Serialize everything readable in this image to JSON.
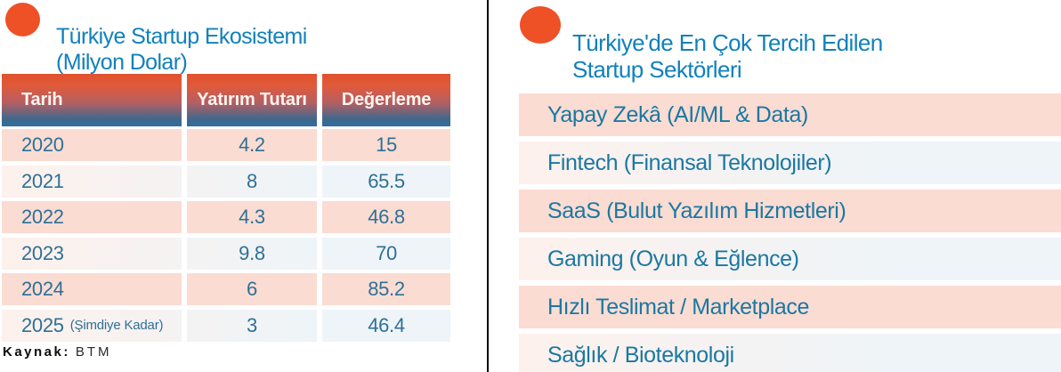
{
  "left_panel": {
    "title_line1": "Türkiye Startup Ekosistemi",
    "title_line2": "(Milyon Dolar)",
    "table": {
      "headers": [
        "Tarih",
        "Yatırım Tutarı",
        "Değerleme"
      ],
      "rows": [
        {
          "tarih": "2020",
          "tarih_note": "",
          "yatirim": "4.2",
          "degerleme": "15"
        },
        {
          "tarih": "2021",
          "tarih_note": "",
          "yatirim": "8",
          "degerleme": "65.5"
        },
        {
          "tarih": "2022",
          "tarih_note": "",
          "yatirim": "4.3",
          "degerleme": "46.8"
        },
        {
          "tarih": "2023",
          "tarih_note": "",
          "yatirim": "9.8",
          "degerleme": "70"
        },
        {
          "tarih": "2024",
          "tarih_note": "",
          "yatirim": "6",
          "degerleme": "85.2"
        },
        {
          "tarih": "2025",
          "tarih_note": "(Şimdiye Kadar)",
          "yatirim": "3",
          "degerleme": "46.4"
        }
      ]
    },
    "source_label": "Kaynak:",
    "source_value": "BTM"
  },
  "right_panel": {
    "title_line1": "Türkiye'de En Çok Tercih Edilen",
    "title_line2": "Startup Sektörleri",
    "sectors": [
      "Yapay Zekâ (AI/ML & Data)",
      "Fintech (Finansal Teknolojiler)",
      "SaaS (Bulut Yazılım Hizmetleri)",
      "Gaming (Oyun & Eğlence)",
      "Hızlı Teslimat / Marketplace",
      "Sağlık / Bioteknoloji"
    ]
  },
  "colors": {
    "accent_orange": "#ee5126",
    "title_blue": "#1181bb",
    "table_text_blue": "#2e7096",
    "list_text_blue": "#1a78a2",
    "row_pink": "#fadcd3",
    "row_light_left": "#fdf1ec",
    "row_light_right": "#eef4f8",
    "header_gradient_top": "#e2512c",
    "header_gradient_bottom": "#2f6f9f",
    "divider_black": "#0b0b0b"
  },
  "chart_data": {
    "type": "table",
    "title": "Türkiye Startup Ekosistemi (Milyon Dolar)",
    "columns": [
      "Tarih",
      "Yatırım Tutarı",
      "Değerleme"
    ],
    "rows": [
      [
        "2020",
        4.2,
        15
      ],
      [
        "2021",
        8,
        65.5
      ],
      [
        "2022",
        4.3,
        46.8
      ],
      [
        "2023",
        9.8,
        70
      ],
      [
        "2024",
        6,
        85.2
      ],
      [
        "2025 (Şimdiye Kadar)",
        3,
        46.4
      ]
    ],
    "source": "BTM",
    "related_list": {
      "title": "Türkiye'de En Çok Tercih Edilen Startup Sektörleri",
      "items": [
        "Yapay Zekâ (AI/ML & Data)",
        "Fintech (Finansal Teknolojiler)",
        "SaaS (Bulut Yazılım Hizmetleri)",
        "Gaming (Oyun & Eğlence)",
        "Hızlı Teslimat / Marketplace",
        "Sağlık / Bioteknoloji"
      ]
    }
  }
}
